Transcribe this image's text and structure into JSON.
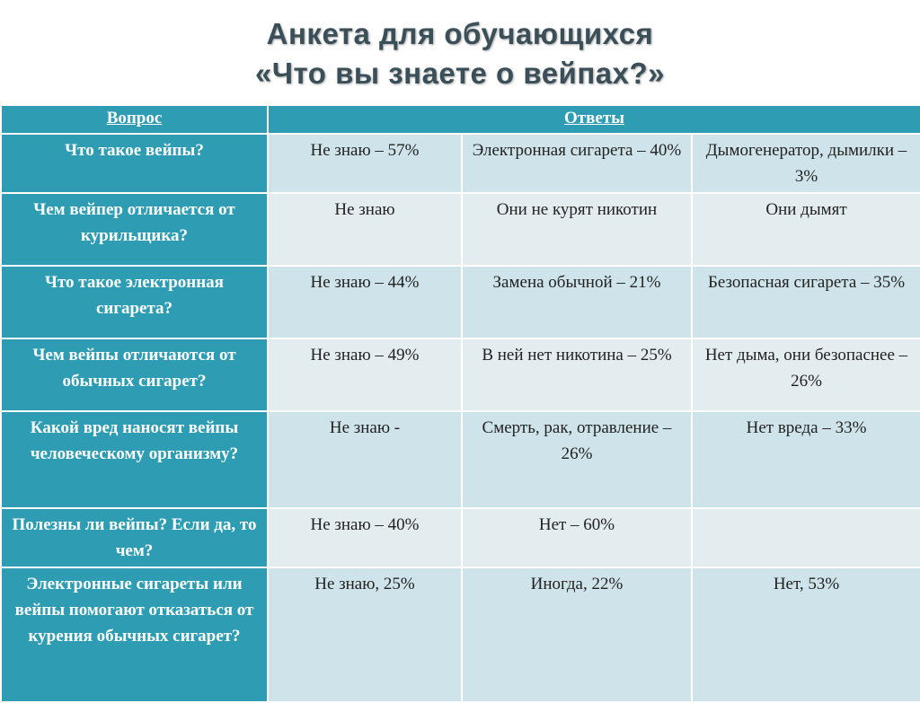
{
  "title": {
    "line1": "Анкета для обучающихся",
    "line2": "«Что вы знаете о вейпах?»"
  },
  "table": {
    "headers": {
      "question": "Вопрос",
      "answers": "Ответы"
    },
    "rows": [
      {
        "question": "Что такое вейпы?",
        "answers": [
          "Не знаю – 57%",
          "Электронная сигарета – 40%",
          "Дымогенератор, дымилки – 3%"
        ]
      },
      {
        "question": "Чем вейпер отличается от курильщика?",
        "answers": [
          "Не знаю",
          "Они не курят никотин",
          "Они дымят"
        ]
      },
      {
        "question": "Что такое электронная сигарета?",
        "answers": [
          "Не знаю – 44%",
          "Замена обычной – 21%",
          "Безопасная сигарета – 35%"
        ]
      },
      {
        "question": "Чем вейпы отличаются от обычных сигарет?",
        "answers": [
          "Не знаю – 49%",
          "В ней нет никотина – 25%",
          "Нет дыма, они безопаснее – 26%"
        ]
      },
      {
        "question": "Какой вред наносят вейпы человеческому организму?",
        "answers": [
          "Не знаю -",
          "Смерть, рак, отравление – 26%",
          "Нет вреда – 33%"
        ]
      },
      {
        "question": "Полезны ли вейпы? Если да, то чем?",
        "answers": [
          "Не знаю – 40%",
          "Нет – 60%",
          ""
        ]
      },
      {
        "question": "Электронные сигареты или вейпы помогают отказаться от курения обычных сигарет?",
        "answers": [
          "Не знаю, 25%",
          "Иногда, 22%",
          "Нет, 53%"
        ]
      }
    ]
  },
  "colors": {
    "header_bg": "#2e9db3",
    "answer_bg_light": "#cfe4ea",
    "answer_bg_pale": "#e3edf0",
    "title_color": "#3a4f58"
  }
}
